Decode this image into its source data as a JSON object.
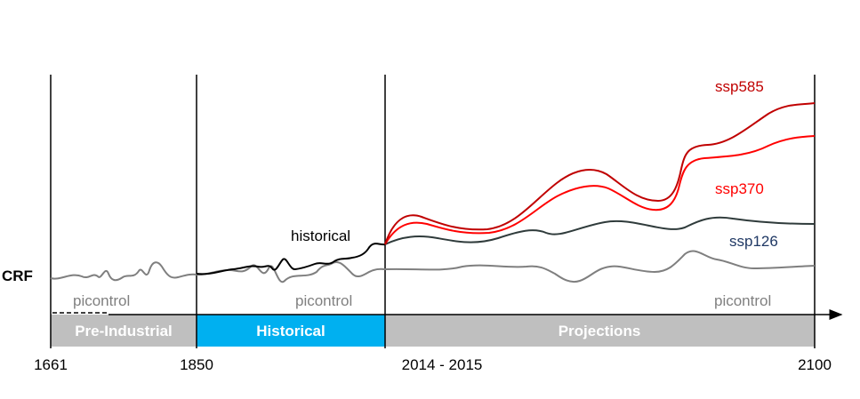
{
  "axis": {
    "ylabel": "CRF"
  },
  "periods": [
    {
      "label": "Pre-Industrial",
      "color": "#bfbfbf"
    },
    {
      "label": "Historical",
      "color": "#00b0f0"
    },
    {
      "label": "Projections",
      "color": "#bfbfbf"
    }
  ],
  "year_ticks": [
    "1661",
    "1850",
    "2014 - 2015",
    "2100"
  ],
  "curve_labels": {
    "historical": "historical",
    "ssp585": "ssp585",
    "ssp370": "ssp370",
    "ssp126": "ssp126",
    "picontrol_1": "picontrol",
    "picontrol_2": "picontrol",
    "picontrol_3": "picontrol"
  },
  "colors": {
    "ssp585": "#c00000",
    "ssp370": "#ff0000",
    "ssp126": "#2f3b3b",
    "ssp126_label": "#1f3864",
    "historical": "#000000",
    "picontrol": "#7f7f7f",
    "picontrol_label": "#808080"
  }
}
